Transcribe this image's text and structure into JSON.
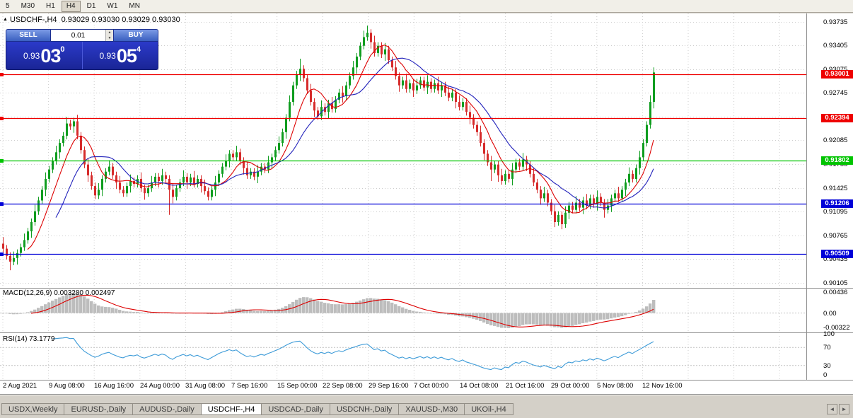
{
  "toolbar": {
    "timeframes": [
      "5",
      "M30",
      "H1",
      "H4",
      "D1",
      "W1",
      "MN"
    ],
    "active": "H4"
  },
  "chart": {
    "collapse_icon": "▲",
    "symbol_period": "USDCHF-,H4",
    "ohlc_line": "0.93029 0.93030 0.93029 0.93030",
    "one_click": {
      "sell_label": "SELL",
      "buy_label": "BUY",
      "lot_value": "0.01",
      "stepper_up": "▲",
      "stepper_down": "▼",
      "bid": {
        "prefix": "0.93",
        "big": "03",
        "sup": "0"
      },
      "ask": {
        "prefix": "0.93",
        "big": "05",
        "sup": "4"
      }
    }
  },
  "chart_data": {
    "type": "candlestick",
    "symbol": "USDCHF-",
    "timeframe": "H4",
    "title": "USDCHF-,H4 0.93029 0.93030 0.93029 0.93030",
    "x_labels": [
      "2 Aug 2021",
      "9 Aug 08:00",
      "16 Aug 16:00",
      "24 Aug 00:00",
      "31 Aug 08:00",
      "7 Sep 16:00",
      "15 Sep 00:00",
      "22 Sep 08:00",
      "29 Sep 16:00",
      "7 Oct 00:00",
      "14 Oct 08:00",
      "21 Oct 16:00",
      "29 Oct 00:00",
      "5 Nov 08:00",
      "12 Nov 16:00"
    ],
    "y_axis_ticks": [
      "0.93735",
      "0.93405",
      "0.93075",
      "0.92745",
      "0.92415",
      "0.92085",
      "0.91755",
      "0.91425",
      "0.91095",
      "0.90765",
      "0.90435",
      "0.90105"
    ],
    "h_lines": [
      {
        "value": 0.93001,
        "label": "0.93001",
        "color": "#ee0000"
      },
      {
        "value": 0.92394,
        "label": "0.92394",
        "color": "#ee0000"
      },
      {
        "value": 0.91802,
        "label": "0.91802",
        "color": "#00c400"
      },
      {
        "value": 0.91206,
        "label": "0.91206",
        "color": "#0000d8"
      },
      {
        "value": 0.90509,
        "label": "0.90509",
        "color": "#0000d8"
      }
    ],
    "candles": {
      "bull_color": "#0f9d1f",
      "bear_color": "#d62b2b",
      "open_first": 0.9065,
      "closes": [
        0.9058,
        0.9048,
        0.904,
        0.9045,
        0.9052,
        0.906,
        0.907,
        0.9082,
        0.9095,
        0.911,
        0.9125,
        0.914,
        0.9155,
        0.9168,
        0.918,
        0.9192,
        0.9205,
        0.9215,
        0.9232,
        0.9228,
        0.9235,
        0.9215,
        0.9195,
        0.9175,
        0.916,
        0.9145,
        0.9132,
        0.914,
        0.9155,
        0.9165,
        0.9172,
        0.916,
        0.915,
        0.914,
        0.9135,
        0.9145,
        0.9152,
        0.9148,
        0.9155,
        0.9142,
        0.9135,
        0.9142,
        0.915,
        0.9158,
        0.9152,
        0.916,
        0.9155,
        0.914,
        0.913,
        0.9142,
        0.915,
        0.9158,
        0.915,
        0.9157,
        0.9148,
        0.9155,
        0.9145,
        0.9138,
        0.913,
        0.914,
        0.915,
        0.9162,
        0.9172,
        0.918,
        0.919,
        0.9185,
        0.9192,
        0.918,
        0.917,
        0.916,
        0.9165,
        0.9158,
        0.9165,
        0.9172,
        0.9168,
        0.9178,
        0.9185,
        0.9195,
        0.9205,
        0.922,
        0.924,
        0.9262,
        0.9285,
        0.93,
        0.9308,
        0.9295,
        0.9278,
        0.9262,
        0.925,
        0.9242,
        0.9255,
        0.9248,
        0.926,
        0.9252,
        0.9265,
        0.9275,
        0.927,
        0.9285,
        0.9298,
        0.931,
        0.9325,
        0.934,
        0.9352,
        0.9358,
        0.9345,
        0.933,
        0.934,
        0.9328,
        0.9335,
        0.932,
        0.931,
        0.9298,
        0.9285,
        0.9292,
        0.928,
        0.9288,
        0.9278,
        0.9285,
        0.9292,
        0.9282,
        0.929,
        0.928,
        0.9288,
        0.9278,
        0.9285,
        0.9275,
        0.9268,
        0.9275,
        0.9262,
        0.9255,
        0.9262,
        0.9248,
        0.924,
        0.923,
        0.922,
        0.9205,
        0.919,
        0.9178,
        0.9168,
        0.9175,
        0.916,
        0.9152,
        0.9162,
        0.9155,
        0.9168,
        0.9178,
        0.9172,
        0.9182,
        0.9175,
        0.9162,
        0.915,
        0.914,
        0.9128,
        0.9135,
        0.9122,
        0.911,
        0.9095,
        0.9105,
        0.9092,
        0.9108,
        0.9118,
        0.9112,
        0.9122,
        0.9115,
        0.9125,
        0.9118,
        0.9128,
        0.912,
        0.913,
        0.9122,
        0.9112,
        0.9118,
        0.9128,
        0.9135,
        0.9128,
        0.914,
        0.915,
        0.9162,
        0.9155,
        0.917,
        0.9185,
        0.9205,
        0.923,
        0.9262,
        0.9303
      ],
      "wick_overrides": {
        "2": {
          "l": 0.9028
        },
        "20": {
          "h": 0.924
        },
        "47": {
          "l": 0.9105
        },
        "84": {
          "h": 0.9322
        },
        "103": {
          "h": 0.9368
        },
        "138": {
          "l": 0.9152
        },
        "156": {
          "l": 0.9088
        },
        "158": {
          "l": 0.9085
        },
        "170": {
          "l": 0.9101
        },
        "184": {
          "h": 0.931
        }
      }
    },
    "moving_averages": [
      {
        "period": 8,
        "color": "#dd0000"
      },
      {
        "period": 16,
        "color": "#2222bb"
      }
    ],
    "macd": {
      "label": "MACD(12,26,9) 0.003280 0.002497",
      "fast": 12,
      "slow": 26,
      "signal_period": 9,
      "axis_labels": [
        "0.00436",
        "0.00",
        "-0.00322"
      ],
      "hist_color": "#bdbdbd",
      "signal_color": "#dd0000"
    },
    "rsi": {
      "label": "RSI(14) 73.1779",
      "period": 14,
      "levels": [
        70,
        30
      ],
      "axis_labels": [
        "100",
        "70",
        "30",
        "0"
      ],
      "line_color": "#3d9bd8"
    }
  },
  "tabs": {
    "items": [
      "USDX,Weekly",
      "EURUSD-,Daily",
      "AUDUSD-,Daily",
      "USDCHF-,H4",
      "USDCAD-,Daily",
      "USDCNH-,Daily",
      "XAUUSD-,M30",
      "UKOil-,H4"
    ],
    "active_index": 3,
    "scroll_left": "◄",
    "scroll_right": "►"
  }
}
